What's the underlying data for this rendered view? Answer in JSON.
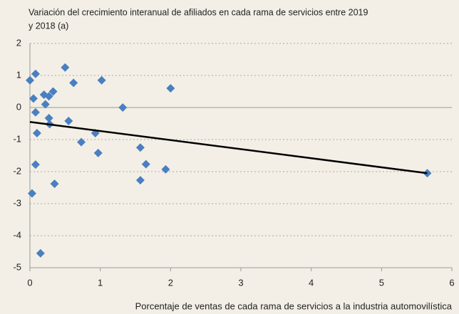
{
  "chart_data": {
    "type": "scatter",
    "title": [
      "Variación del crecimiento interanual de afiliados en cada rama de servicios entre 2019",
      "y  2018 (a)"
    ],
    "x_label": "Porcentaje de ventas de cada rama de servicios a la industria automovilística",
    "series": [
      {
        "color": "#4a7fc1",
        "x": [
          0.0,
          0.08,
          0.05,
          0.08,
          0.1,
          0.08,
          0.03,
          0.15,
          0.2,
          0.22,
          0.27,
          0.33,
          0.27,
          0.28,
          0.35,
          0.5,
          0.55,
          0.62,
          0.73,
          0.93,
          0.97,
          1.02,
          1.32,
          1.57,
          1.57,
          1.65,
          1.93,
          2.0,
          5.65
        ],
        "values": [
          0.85,
          1.05,
          0.28,
          -0.15,
          -0.8,
          -1.78,
          -2.68,
          -4.55,
          0.4,
          0.1,
          0.35,
          0.5,
          -0.33,
          -0.52,
          -2.38,
          1.25,
          -0.42,
          0.77,
          -1.08,
          -0.8,
          -1.42,
          0.85,
          0.0,
          -1.25,
          -2.27,
          -1.77,
          -1.93,
          0.6,
          -2.05
        ]
      }
    ],
    "trendline": {
      "color": "#000000",
      "x": [
        0,
        5.65
      ],
      "values": [
        -0.45,
        -2.05
      ]
    },
    "xlim": [
      0,
      6
    ],
    "xticks": [
      0,
      1,
      2,
      3,
      4,
      5,
      6
    ],
    "ylim": [
      -5,
      2
    ],
    "yticks": [
      -5,
      -4,
      -3,
      -2,
      -1,
      0,
      1,
      2
    ],
    "grid": true
  }
}
